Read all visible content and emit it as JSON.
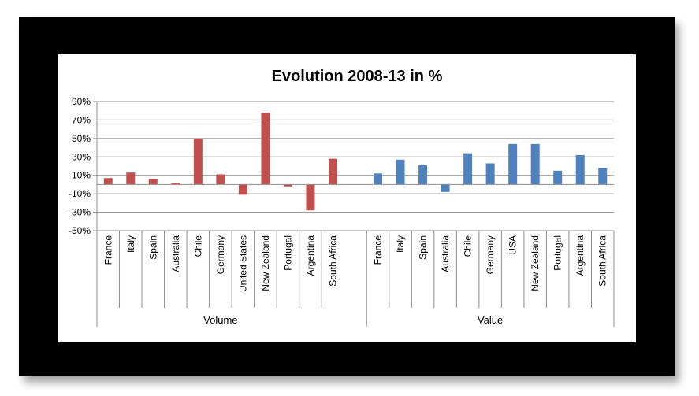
{
  "chart_data": {
    "type": "bar",
    "title": "Evolution 2008-13 in %",
    "ylim": [
      -50,
      90
    ],
    "yticks": [
      90,
      70,
      50,
      30,
      10,
      -10,
      -30,
      -50
    ],
    "ytick_labels": [
      "90%",
      "70%",
      "50%",
      "30%",
      "10%",
      "-10%",
      "-30%",
      "-50%"
    ],
    "grid": true,
    "legend": "none",
    "groups": [
      {
        "name": "Volume",
        "color": "#c0504d",
        "categories": [
          "France",
          "Italy",
          "Spain",
          "Australia",
          "Chile",
          "Germany",
          "United States",
          "New Zealand",
          "Portugal",
          "Argentina",
          "South Africa"
        ],
        "values": [
          7,
          13,
          6,
          2,
          50,
          11,
          -11,
          78,
          -2,
          -28,
          28
        ]
      },
      {
        "name": "Value",
        "color": "#4f81bd",
        "categories": [
          "France",
          "Italy",
          "Spain",
          "Australia",
          "Chile",
          "Germany",
          "USA",
          "New Zealand",
          "Portugal",
          "Argentina",
          "South Africa"
        ],
        "values": [
          12,
          27,
          21,
          -8,
          34,
          23,
          44,
          44,
          15,
          32,
          18
        ]
      }
    ]
  }
}
